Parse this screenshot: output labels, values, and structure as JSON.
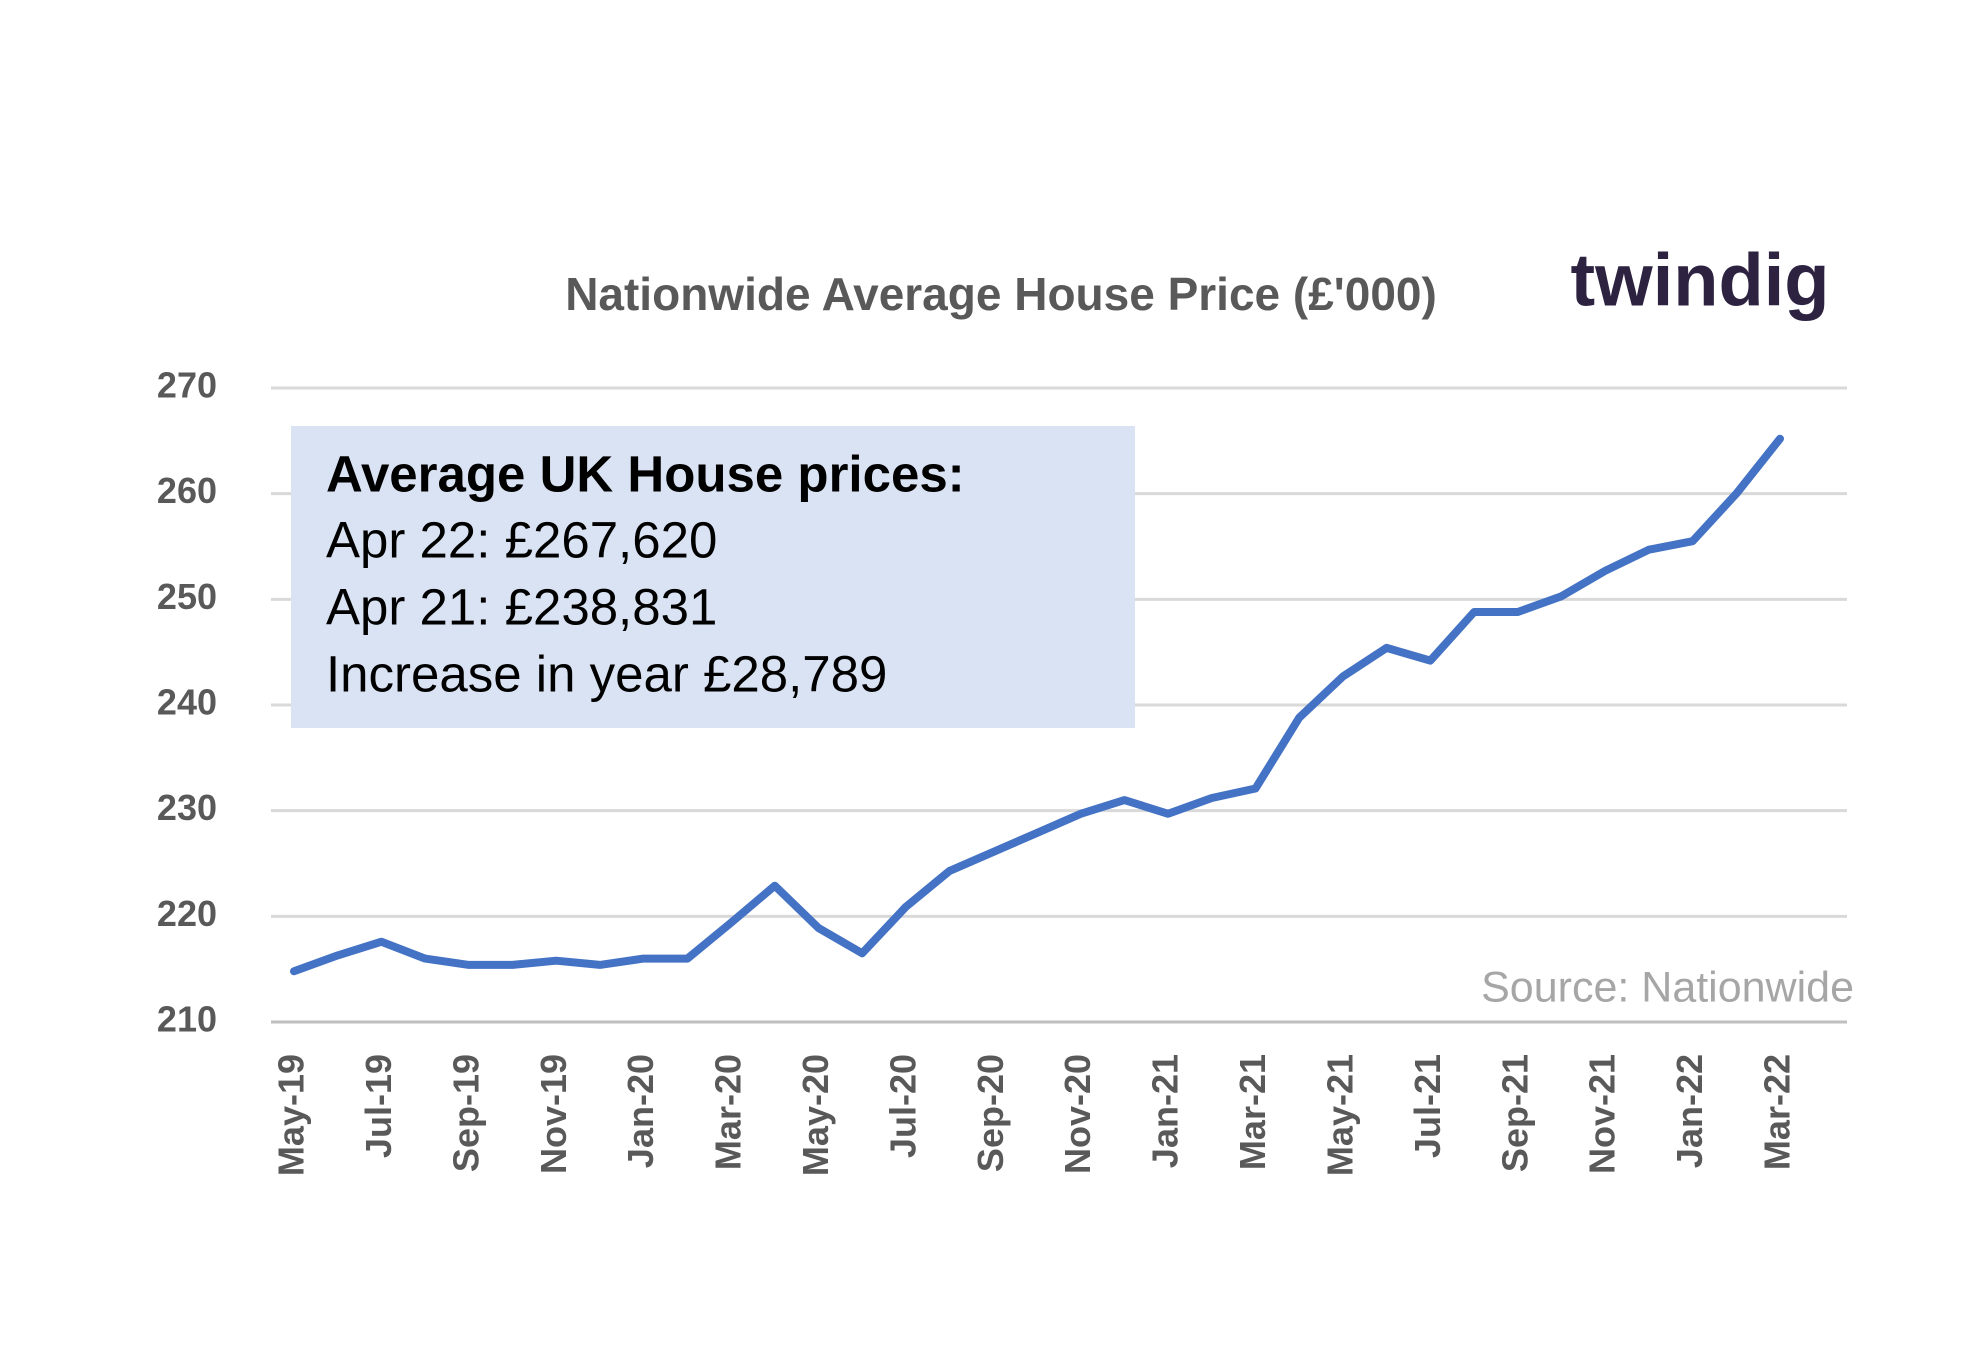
{
  "chart_data": {
    "type": "line",
    "title": "Nationwide Average House Price (£'000)",
    "logo": "twindig",
    "source": "Source: Nationwide",
    "textbox": {
      "heading": "Average UK House prices:",
      "lines": [
        "Apr 22: £267,620",
        "Apr 21: £238,831",
        "Increase in year  £28,789"
      ]
    },
    "categories": [
      "May-19",
      null,
      "Jul-19",
      null,
      "Sep-19",
      null,
      "Nov-19",
      null,
      "Jan-20",
      null,
      "Mar-20",
      null,
      "May-20",
      null,
      "Jul-20",
      null,
      "Sep-20",
      null,
      "Nov-20",
      null,
      "Jan-21",
      null,
      "Mar-21",
      null,
      "May-21",
      null,
      "Jul-21",
      null,
      "Sep-21",
      null,
      "Nov-21",
      null,
      "Jan-22",
      null,
      "Mar-22"
    ],
    "values": [
      214.8,
      216.3,
      217.6,
      216,
      215.4,
      215.4,
      215.8,
      215.4,
      216,
      216,
      219.4,
      222.9,
      218.9,
      216.5,
      220.9,
      224.3,
      226.1,
      227.9,
      229.7,
      231,
      229.7,
      231.2,
      232.1,
      238.8,
      242.7,
      245.4,
      244.2,
      248.8,
      248.8,
      250.3,
      252.7,
      254.7,
      255.5,
      260,
      265.2
    ],
    "color": "#4472c4",
    "ylim": [
      210,
      270
    ],
    "yticks": [
      210,
      220,
      230,
      240,
      250,
      260,
      270
    ],
    "grid": true
  }
}
